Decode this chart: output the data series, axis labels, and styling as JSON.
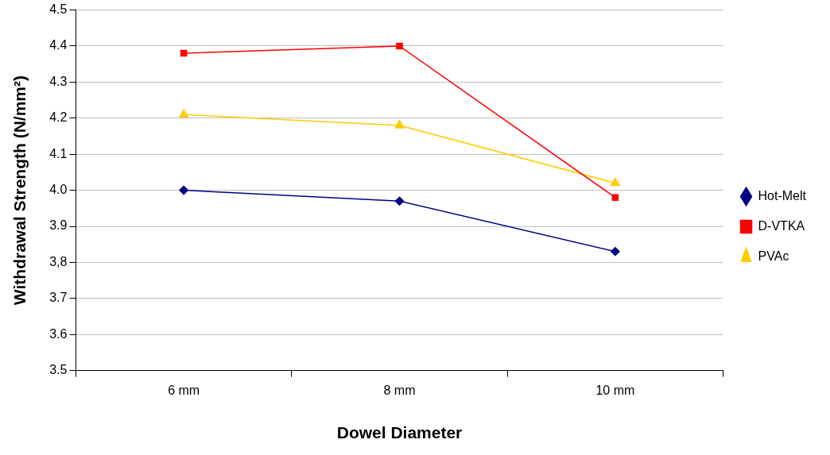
{
  "chart_data": {
    "type": "line",
    "xlabel": "Dowel Diameter",
    "ylabel": "Withdrawal Strength (N/mm²)",
    "categories": [
      "6 mm",
      "8 mm",
      "10 mm"
    ],
    "series": [
      {
        "name": "Hot-Melt",
        "color": "#000080",
        "marker": "diamond",
        "values": [
          4.0,
          3.97,
          3.83
        ]
      },
      {
        "name": "D-VTKA",
        "color": "#ff0000",
        "marker": "square",
        "values": [
          4.38,
          4.4,
          3.98
        ]
      },
      {
        "name": "PVAc",
        "color": "#ffcc00",
        "marker": "triangle",
        "values": [
          4.21,
          4.18,
          4.02
        ]
      }
    ],
    "ylim": [
      3.5,
      4.5
    ],
    "yticks": [
      3.5,
      3.6,
      3.7,
      {
        "value": 3.8,
        "label": "3,8"
      },
      3.9,
      {
        "value": 4.0,
        "label": "4.0"
      },
      4.1,
      4.2,
      4.3,
      4.4,
      4.5
    ],
    "grid": "y",
    "legend": "right",
    "line_style": "solid"
  }
}
